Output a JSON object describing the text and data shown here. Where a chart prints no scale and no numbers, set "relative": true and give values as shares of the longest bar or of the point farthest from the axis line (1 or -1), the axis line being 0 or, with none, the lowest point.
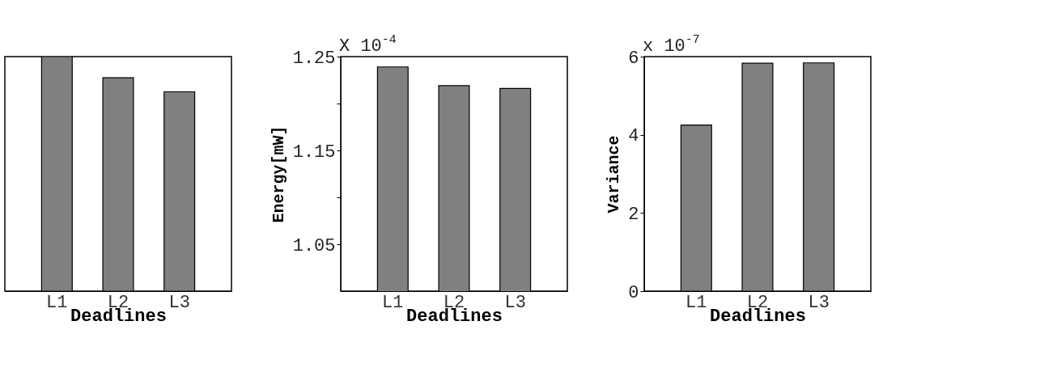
{
  "chart_data": [
    {
      "type": "bar",
      "categories": [
        "L1",
        "L2",
        "L3"
      ],
      "values": [
        1,
        0.91,
        0.85
      ],
      "relative": true,
      "color": "#808080",
      "xlabel": "Deadlines"
    },
    {
      "type": "bar",
      "categories": [
        "L1",
        "L2",
        "L3"
      ],
      "values": [
        1.239,
        1.219,
        1.216
      ],
      "color": "#808080",
      "xlabel": "Deadlines",
      "ylabel": "Energy[mW]",
      "ylim": [
        1.0,
        1.25
      ],
      "yticks": [
        {
          "value": 1.05,
          "label": "1.05"
        },
        {
          "value": 1.1,
          "label": null
        },
        {
          "value": 1.15,
          "label": "1.15"
        },
        {
          "value": 1.2,
          "label": null
        },
        {
          "value": 1.25,
          "label": "1.25"
        }
      ],
      "annotations": [
        "X 10$^{-4}$"
      ]
    },
    {
      "type": "bar",
      "categories": [
        "L1",
        "L2",
        "L3"
      ],
      "values": [
        4.25,
        5.83,
        5.84
      ],
      "color": "#808080",
      "xlabel": "Deadlines",
      "ylabel": "Variance",
      "ylim": [
        0,
        6
      ],
      "yticks": [
        0,
        2,
        4,
        6
      ],
      "annotations": [
        "x 10$^{-7}$"
      ]
    }
  ]
}
